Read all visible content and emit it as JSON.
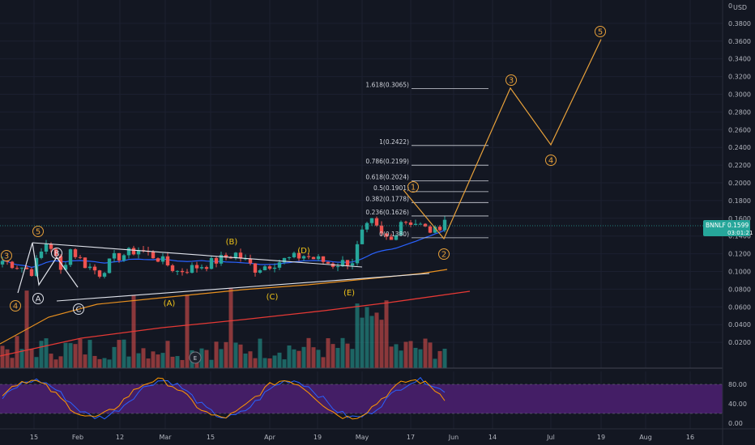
{
  "axis": {
    "currency": "USD",
    "y_ticks": [
      "0.3800",
      "0.3600",
      "0.3400",
      "0.3200",
      "0.3000",
      "0.2800",
      "0.2600",
      "0.2400",
      "0.2200",
      "0.2000",
      "0.1800",
      "0.1600",
      "0.1400",
      "0.1200",
      "0.1000",
      "0.0800",
      "0.0600",
      "0.0400",
      "0.0200"
    ],
    "x_ticks": [
      "15",
      "Feb",
      "12",
      "Mar",
      "15",
      "Apr",
      "19",
      "May",
      "17",
      "Jun",
      "14",
      "Jul",
      "19",
      "Aug",
      "16"
    ],
    "rsi_ticks": [
      "80.00",
      "40.00",
      "0.00"
    ]
  },
  "price_tag": {
    "symbol": "BNNLF",
    "price": "0.1599",
    "countdown": "03:01:21",
    "color": "#26a69a"
  },
  "fib_levels": [
    {
      "label": "1.618(0.3065)",
      "price": 0.3065
    },
    {
      "label": "1(0.2422)",
      "price": 0.2422
    },
    {
      "label": "0.786(0.2199)",
      "price": 0.2199
    },
    {
      "label": "0.618(0.2024)",
      "price": 0.2024
    },
    {
      "label": "0.5(0.1901)",
      "price": 0.1901
    },
    {
      "label": "0.382(0.1778)",
      "price": 0.1778
    },
    {
      "label": "0.236(0.1626)",
      "price": 0.1626
    },
    {
      "label": "0(0.1380)",
      "price": 0.138
    }
  ],
  "waves": {
    "orange_impulse": [
      "3",
      "4",
      "5"
    ],
    "white_abc": [
      "A",
      "B",
      "C"
    ],
    "triangle": [
      "(A)",
      "(B)",
      "(C)",
      "(D)",
      "(E)"
    ],
    "forecast": [
      "1",
      "2",
      "3",
      "4",
      "5"
    ],
    "event_badge": "E"
  },
  "chart_data": {
    "type": "candlestick",
    "symbol": "BNNLF",
    "y_range": [
      0,
      0.4
    ],
    "last_price": 0.1599,
    "forecast_path": [
      {
        "label": "2",
        "price": 0.137
      },
      {
        "label": "3",
        "price": 0.307
      },
      {
        "label": "4",
        "price": 0.243
      },
      {
        "label": "5",
        "price": 0.362
      }
    ],
    "rsi_band": [
      20,
      80
    ],
    "colors": {
      "up": "#26a69a",
      "down": "#ef5350",
      "ma_fast": "#2962ff",
      "ma_mid": "#e8901f",
      "ma_slow": "#e53935",
      "forecast": "#e8a13a",
      "rsi_fill": "#4a1f6e"
    }
  }
}
